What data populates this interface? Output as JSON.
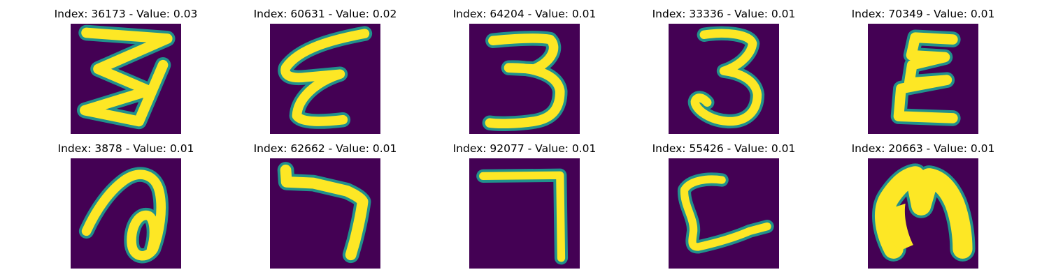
{
  "figure": {
    "colormap": {
      "low": "#440154",
      "mid": "#21918c",
      "high": "#fde725"
    },
    "items": [
      {
        "title": "Index: 36173 - Value: 0.03",
        "glyph": "three-pointed-glyph"
      },
      {
        "title": "Index: 60631 - Value: 0.02",
        "glyph": "slanted-e-glyph"
      },
      {
        "title": "Index: 64204 - Value: 0.01",
        "glyph": "digit-three"
      },
      {
        "title": "Index: 33336 - Value: 0.01",
        "glyph": "digit-three-curled"
      },
      {
        "title": "Index: 70349 - Value: 0.01",
        "glyph": "reversed-three-glyph"
      },
      {
        "title": "Index: 3878 - Value: 0.01",
        "glyph": "loop-glyph"
      },
      {
        "title": "Index: 62662 - Value: 0.01",
        "glyph": "digit-seven"
      },
      {
        "title": "Index: 92077 - Value: 0.01",
        "glyph": "digit-seven-straight"
      },
      {
        "title": "Index: 55426 - Value: 0.01",
        "glyph": "l-shape-glyph"
      },
      {
        "title": "Index: 20663 - Value: 0.01",
        "glyph": "arch-glyph"
      }
    ]
  }
}
